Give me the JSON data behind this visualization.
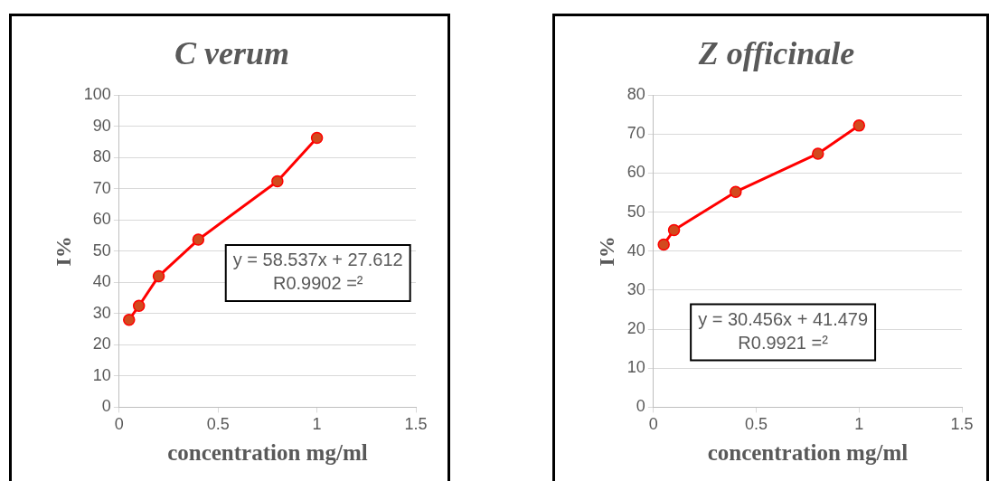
{
  "chart_data": [
    {
      "type": "line",
      "title": "C verum",
      "xlabel": "concentration mg/ml",
      "ylabel": "I%",
      "x": [
        0.05,
        0.1,
        0.2,
        0.4,
        0.8,
        1
      ],
      "series": [
        {
          "color": "#ff0000",
          "values": [
            28,
            32.5,
            42,
            53.7,
            72.4,
            86.3
          ]
        }
      ],
      "xlim": [
        0,
        1.5
      ],
      "xticks": [
        0,
        0.5,
        1,
        1.5
      ],
      "ylim": [
        0,
        100
      ],
      "yticks": [
        0,
        10,
        20,
        30,
        40,
        50,
        60,
        70,
        80,
        90,
        100
      ],
      "grid": "y",
      "marker": "circle",
      "line_style": "solid",
      "legend": false,
      "annotations": [
        "y = 58.537x + 27.612",
        "R0.9902 =²"
      ]
    },
    {
      "type": "line",
      "title": "Z officinale",
      "xlabel": "concentration mg/ml",
      "ylabel": "I%",
      "x": [
        0.05,
        0.1,
        0.4,
        0.8,
        1
      ],
      "series": [
        {
          "color": "#ff0000",
          "values": [
            41.7,
            45.4,
            55.2,
            65,
            72.2
          ]
        }
      ],
      "xlim": [
        0,
        1.5
      ],
      "xticks": [
        0,
        0.5,
        1,
        1.5
      ],
      "ylim": [
        0,
        80
      ],
      "yticks": [
        0,
        10,
        20,
        30,
        40,
        50,
        60,
        70,
        80
      ],
      "grid": "y",
      "marker": "circle",
      "line_style": "solid",
      "legend": false,
      "annotations": [
        "y = 30.456x + 41.479",
        "R0.9921 =²"
      ]
    }
  ]
}
